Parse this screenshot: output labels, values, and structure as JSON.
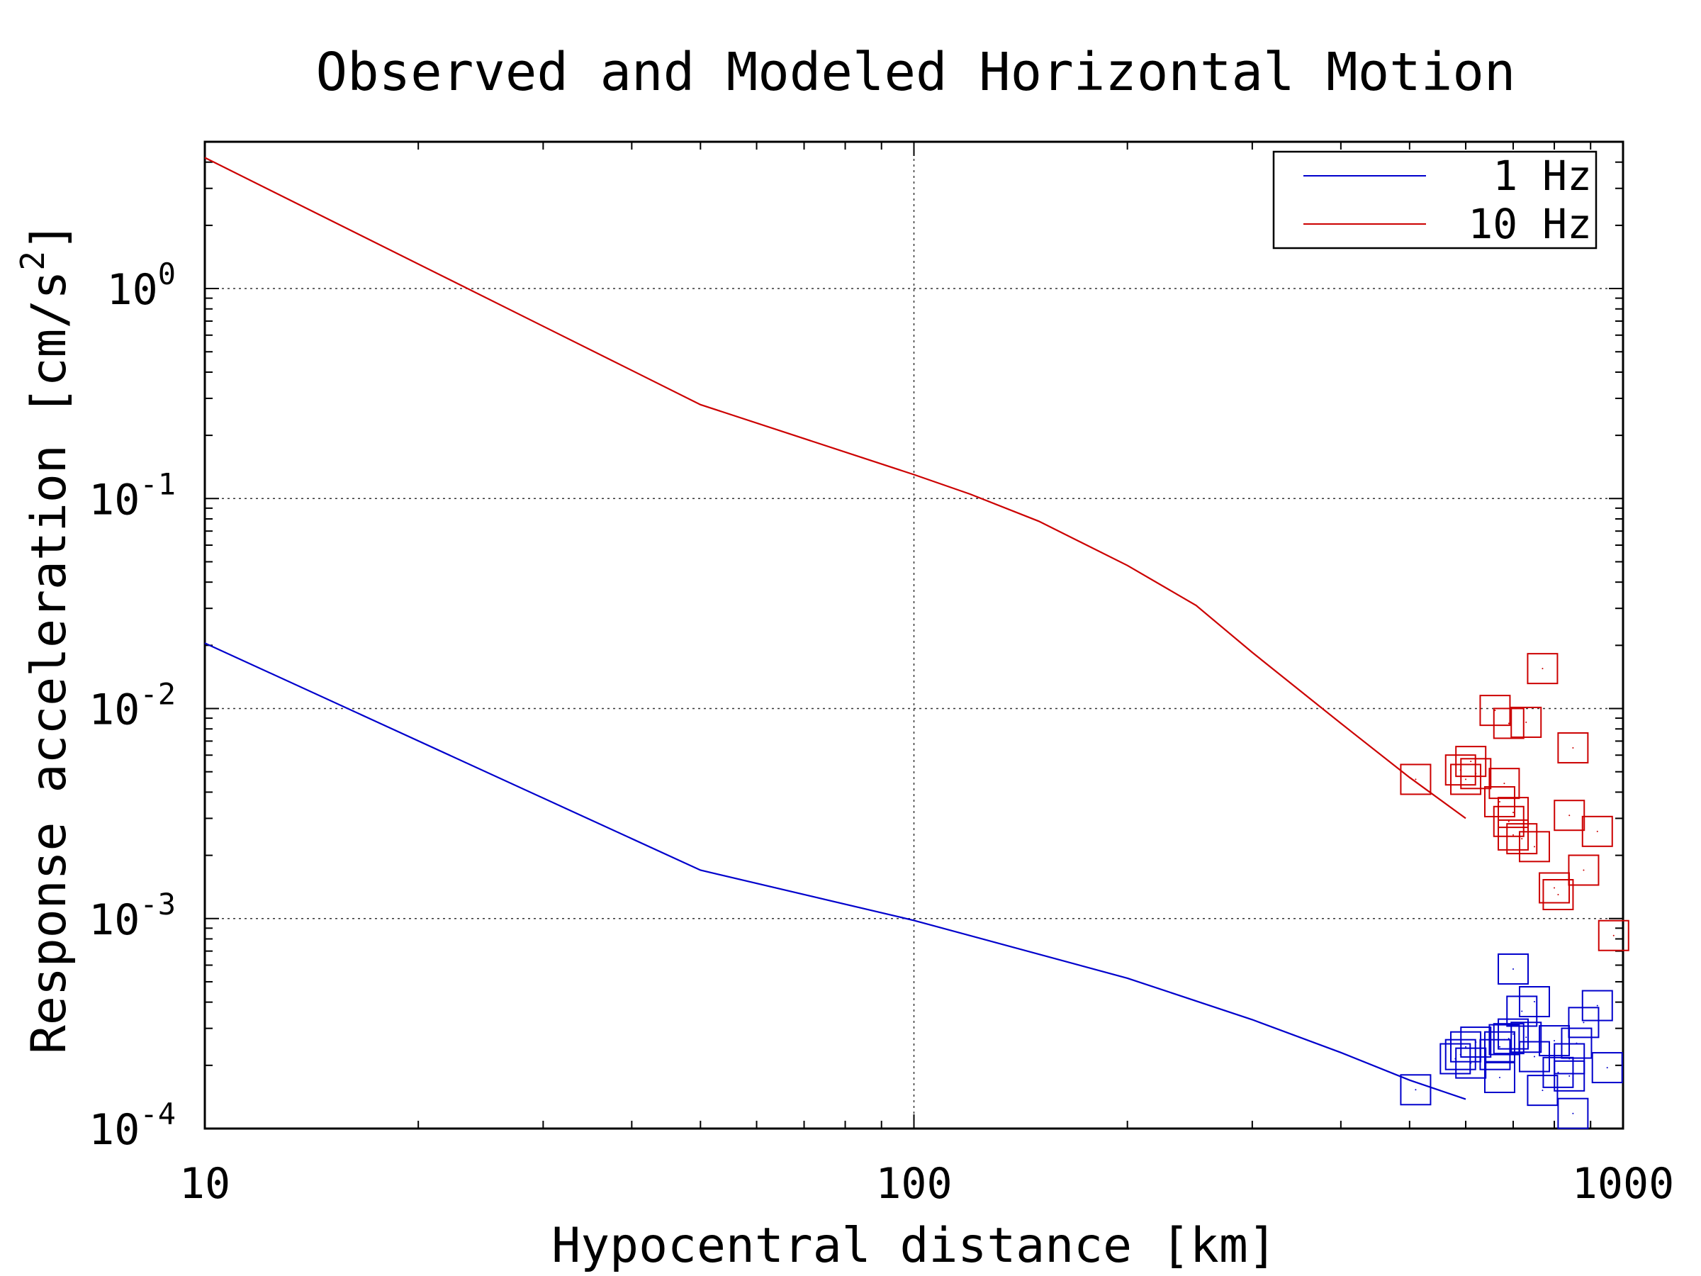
{
  "chart_data": {
    "type": "line",
    "title": "Observed and Modeled Horizontal Motion",
    "xlabel": "Hypocentral distance [km]",
    "ylabel": {
      "prefix": "Response acceleration [cm/s",
      "sup": "2",
      "suffix": "]"
    },
    "x_scale": "log",
    "y_scale": "log",
    "xlim": [
      10,
      1000
    ],
    "ylim": [
      0.0001,
      5
    ],
    "x_ticks": [
      {
        "value": 10,
        "label": "10"
      },
      {
        "value": 100,
        "label": "100"
      },
      {
        "value": 1000,
        "label": "1000"
      }
    ],
    "y_ticks": [
      {
        "value": 0.0001,
        "base": "10",
        "exp": "-4"
      },
      {
        "value": 0.001,
        "base": "10",
        "exp": "-3"
      },
      {
        "value": 0.01,
        "base": "10",
        "exp": "-2"
      },
      {
        "value": 0.1,
        "base": "10",
        "exp": "-1"
      },
      {
        "value": 1,
        "base": "10",
        "exp": "0"
      }
    ],
    "grid": true,
    "legend_position": "top-right",
    "series": [
      {
        "name": "1 Hz",
        "color": "#0000cc",
        "line": [
          [
            10,
            0.0205
          ],
          [
            50,
            0.0017
          ],
          [
            100,
            0.00098
          ],
          [
            200,
            0.00052
          ],
          [
            300,
            0.00033
          ],
          [
            400,
            0.00023
          ],
          [
            500,
            0.00017
          ],
          [
            600,
            0.000138
          ]
        ],
        "observed": [
          [
            510,
            0.000153
          ],
          [
            580,
            0.000215
          ],
          [
            590,
            0.000225
          ],
          [
            600,
            0.000245
          ],
          [
            610,
            0.000205
          ],
          [
            620,
            0.000258
          ],
          [
            660,
            0.000225
          ],
          [
            670,
            0.000245
          ],
          [
            670,
            0.000175
          ],
          [
            680,
            0.000265
          ],
          [
            690,
            0.000268
          ],
          [
            700,
            0.000282
          ],
          [
            700,
            0.000575
          ],
          [
            720,
            0.000362
          ],
          [
            730,
            0.000272
          ],
          [
            750,
            0.000402
          ],
          [
            750,
            0.00022
          ],
          [
            770,
            0.000152
          ],
          [
            800,
            0.000262
          ],
          [
            810,
            0.000185
          ],
          [
            840,
            0.000178
          ],
          [
            840,
            0.000215
          ],
          [
            850,
            0.000118
          ],
          [
            860,
            0.000255
          ],
          [
            880,
            0.00032
          ],
          [
            920,
            0.000385
          ],
          [
            950,
            0.000195
          ]
        ]
      },
      {
        "name": "10 Hz",
        "color": "#cc0000",
        "line": [
          [
            10,
            4.2
          ],
          [
            50,
            0.28
          ],
          [
            100,
            0.13
          ],
          [
            120,
            0.105
          ],
          [
            150,
            0.078
          ],
          [
            200,
            0.048
          ],
          [
            250,
            0.031
          ],
          [
            300,
            0.0185
          ],
          [
            400,
            0.0085
          ],
          [
            500,
            0.0047
          ],
          [
            600,
            0.003
          ]
        ],
        "observed": [
          [
            510,
            0.0046
          ],
          [
            590,
            0.0051
          ],
          [
            600,
            0.0046
          ],
          [
            610,
            0.0056
          ],
          [
            620,
            0.0049
          ],
          [
            660,
            0.0098
          ],
          [
            670,
            0.0036
          ],
          [
            680,
            0.0044
          ],
          [
            690,
            0.0085
          ],
          [
            690,
            0.0029
          ],
          [
            700,
            0.0032
          ],
          [
            700,
            0.0025
          ],
          [
            720,
            0.0024
          ],
          [
            730,
            0.0086
          ],
          [
            750,
            0.0022
          ],
          [
            770,
            0.0155
          ],
          [
            800,
            0.0014
          ],
          [
            810,
            0.0013
          ],
          [
            840,
            0.0031
          ],
          [
            850,
            0.0065
          ],
          [
            880,
            0.0017
          ],
          [
            920,
            0.0026
          ],
          [
            970,
            0.00083
          ]
        ]
      }
    ]
  }
}
